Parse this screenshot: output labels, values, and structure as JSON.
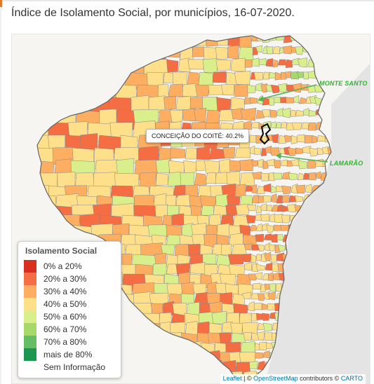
{
  "title": "Índice de Isolamento Social, por municípios, 16-07-2020.",
  "colors": {
    "sea": "#e4e4e4",
    "land_background": "#f6f5f1",
    "border": "#888888",
    "highlight_border": "#000000",
    "pointer_arrow": "#55b355"
  },
  "legend": {
    "title": "Isolamento Social",
    "items": [
      {
        "label": "0% a 20%",
        "color": "#d7301f"
      },
      {
        "label": "20% a 30%",
        "color": "#f46d43"
      },
      {
        "label": "30% a 40%",
        "color": "#fdae61"
      },
      {
        "label": "40% a 50%",
        "color": "#fee08b"
      },
      {
        "label": "50% a 60%",
        "color": "#d9ef8b"
      },
      {
        "label": "60% a 70%",
        "color": "#a6d96a"
      },
      {
        "label": "70% a 80%",
        "color": "#66bd63"
      },
      {
        "label": "mais de 80%",
        "color": "#1a9850"
      },
      {
        "label": "Sem Informação",
        "color": ""
      }
    ]
  },
  "tooltip": {
    "text": "CONCEIÇÃO DO COITÉ: 40.2%"
  },
  "labels": {
    "monte_santo": "MONTE SANTO",
    "lamarao": "LAMARÃO"
  },
  "attribution": {
    "leaflet": "Leaflet",
    "sep1": " | © ",
    "osm": "OpenStreetMap",
    "contributors": " contributors © ",
    "carto": "CARTO"
  }
}
